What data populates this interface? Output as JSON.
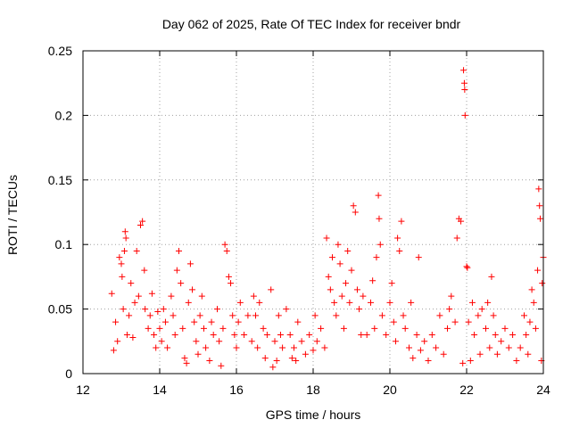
{
  "chart_data": {
    "type": "scatter",
    "title": "Day 062 of 2025, Rate Of TEC Index for receiver bndr",
    "xlabel": "GPS time / hours",
    "ylabel": "ROTI / TECUs",
    "xlim": [
      12,
      24
    ],
    "ylim": [
      0,
      0.25
    ],
    "xticks": [
      12,
      14,
      16,
      18,
      20,
      22,
      24
    ],
    "xtick_labels": [
      "12",
      "14",
      "16",
      "18",
      "20",
      "22",
      "24"
    ],
    "yticks": [
      0,
      0.05,
      0.1,
      0.15,
      0.2,
      0.25
    ],
    "ytick_labels": [
      "0",
      "0.05",
      "0.1",
      "0.15",
      "0.2",
      "0.25"
    ],
    "grid": true,
    "marker": "plus",
    "color": "#ff0000",
    "series": [
      {
        "name": "ROTI",
        "points": [
          [
            12.75,
            0.062
          ],
          [
            12.8,
            0.018
          ],
          [
            12.85,
            0.04
          ],
          [
            12.9,
            0.025
          ],
          [
            12.95,
            0.09
          ],
          [
            13.0,
            0.085
          ],
          [
            13.02,
            0.075
          ],
          [
            13.05,
            0.05
          ],
          [
            13.08,
            0.095
          ],
          [
            13.1,
            0.11
          ],
          [
            13.12,
            0.105
          ],
          [
            13.15,
            0.03
          ],
          [
            13.2,
            0.045
          ],
          [
            13.25,
            0.07
          ],
          [
            13.3,
            0.028
          ],
          [
            13.35,
            0.055
          ],
          [
            13.4,
            0.095
          ],
          [
            13.45,
            0.06
          ],
          [
            13.5,
            0.115
          ],
          [
            13.55,
            0.118
          ],
          [
            13.6,
            0.08
          ],
          [
            13.62,
            0.05
          ],
          [
            13.7,
            0.035
          ],
          [
            13.75,
            0.045
          ],
          [
            13.8,
            0.062
          ],
          [
            13.85,
            0.03
          ],
          [
            13.9,
            0.02
          ],
          [
            13.95,
            0.048
          ],
          [
            14.0,
            0.035
          ],
          [
            14.05,
            0.025
          ],
          [
            14.1,
            0.05
          ],
          [
            14.15,
            0.04
          ],
          [
            14.2,
            0.02
          ],
          [
            14.3,
            0.06
          ],
          [
            14.35,
            0.045
          ],
          [
            14.4,
            0.03
          ],
          [
            14.45,
            0.08
          ],
          [
            14.5,
            0.095
          ],
          [
            14.55,
            0.07
          ],
          [
            14.6,
            0.035
          ],
          [
            14.65,
            0.012
          ],
          [
            14.7,
            0.008
          ],
          [
            14.75,
            0.055
          ],
          [
            14.8,
            0.085
          ],
          [
            14.85,
            0.065
          ],
          [
            14.9,
            0.04
          ],
          [
            14.95,
            0.025
          ],
          [
            15.0,
            0.015
          ],
          [
            15.05,
            0.045
          ],
          [
            15.1,
            0.06
          ],
          [
            15.15,
            0.035
          ],
          [
            15.2,
            0.02
          ],
          [
            15.3,
            0.01
          ],
          [
            15.35,
            0.04
          ],
          [
            15.4,
            0.03
          ],
          [
            15.5,
            0.05
          ],
          [
            15.55,
            0.025
          ],
          [
            15.6,
            0.006
          ],
          [
            15.65,
            0.035
          ],
          [
            15.7,
            0.1
          ],
          [
            15.75,
            0.095
          ],
          [
            15.8,
            0.075
          ],
          [
            15.85,
            0.07
          ],
          [
            15.9,
            0.045
          ],
          [
            15.95,
            0.03
          ],
          [
            16.0,
            0.02
          ],
          [
            16.05,
            0.04
          ],
          [
            16.1,
            0.055
          ],
          [
            16.2,
            0.03
          ],
          [
            16.3,
            0.045
          ],
          [
            16.4,
            0.025
          ],
          [
            16.45,
            0.06
          ],
          [
            16.5,
            0.045
          ],
          [
            16.55,
            0.02
          ],
          [
            16.6,
            0.055
          ],
          [
            16.7,
            0.035
          ],
          [
            16.75,
            0.012
          ],
          [
            16.8,
            0.03
          ],
          [
            16.9,
            0.065
          ],
          [
            16.95,
            0.005
          ],
          [
            17.0,
            0.025
          ],
          [
            17.05,
            0.01
          ],
          [
            17.1,
            0.045
          ],
          [
            17.15,
            0.03
          ],
          [
            17.2,
            0.02
          ],
          [
            17.3,
            0.05
          ],
          [
            17.4,
            0.03
          ],
          [
            17.45,
            0.012
          ],
          [
            17.5,
            0.02
          ],
          [
            17.55,
            0.01
          ],
          [
            17.6,
            0.04
          ],
          [
            17.7,
            0.025
          ],
          [
            17.8,
            0.015
          ],
          [
            17.9,
            0.03
          ],
          [
            18.0,
            0.018
          ],
          [
            18.05,
            0.045
          ],
          [
            18.1,
            0.025
          ],
          [
            18.2,
            0.035
          ],
          [
            18.3,
            0.02
          ],
          [
            18.35,
            0.105
          ],
          [
            18.4,
            0.075
          ],
          [
            18.45,
            0.065
          ],
          [
            18.5,
            0.09
          ],
          [
            18.55,
            0.055
          ],
          [
            18.6,
            0.045
          ],
          [
            18.65,
            0.1
          ],
          [
            18.7,
            0.085
          ],
          [
            18.75,
            0.06
          ],
          [
            18.8,
            0.035
          ],
          [
            18.85,
            0.07
          ],
          [
            18.9,
            0.095
          ],
          [
            18.95,
            0.055
          ],
          [
            19.0,
            0.08
          ],
          [
            19.05,
            0.13
          ],
          [
            19.1,
            0.125
          ],
          [
            19.15,
            0.065
          ],
          [
            19.2,
            0.05
          ],
          [
            19.25,
            0.03
          ],
          [
            19.3,
            0.06
          ],
          [
            19.4,
            0.03
          ],
          [
            19.5,
            0.055
          ],
          [
            19.55,
            0.072
          ],
          [
            19.6,
            0.035
          ],
          [
            19.65,
            0.09
          ],
          [
            19.7,
            0.138
          ],
          [
            19.72,
            0.12
          ],
          [
            19.75,
            0.1
          ],
          [
            19.8,
            0.045
          ],
          [
            19.9,
            0.03
          ],
          [
            20.0,
            0.055
          ],
          [
            20.05,
            0.07
          ],
          [
            20.1,
            0.04
          ],
          [
            20.15,
            0.025
          ],
          [
            20.2,
            0.105
          ],
          [
            20.25,
            0.095
          ],
          [
            20.3,
            0.118
          ],
          [
            20.35,
            0.045
          ],
          [
            20.4,
            0.035
          ],
          [
            20.5,
            0.02
          ],
          [
            20.55,
            0.055
          ],
          [
            20.6,
            0.012
          ],
          [
            20.7,
            0.03
          ],
          [
            20.75,
            0.09
          ],
          [
            20.8,
            0.018
          ],
          [
            20.9,
            0.025
          ],
          [
            21.0,
            0.01
          ],
          [
            21.1,
            0.03
          ],
          [
            21.2,
            0.02
          ],
          [
            21.3,
            0.045
          ],
          [
            21.4,
            0.015
          ],
          [
            21.5,
            0.035
          ],
          [
            21.55,
            0.05
          ],
          [
            21.6,
            0.06
          ],
          [
            21.7,
            0.04
          ],
          [
            21.75,
            0.105
          ],
          [
            21.8,
            0.12
          ],
          [
            21.85,
            0.118
          ],
          [
            21.9,
            0.008
          ],
          [
            21.92,
            0.235
          ],
          [
            21.94,
            0.225
          ],
          [
            21.95,
            0.22
          ],
          [
            21.96,
            0.2
          ],
          [
            22.0,
            0.083
          ],
          [
            22.02,
            0.082
          ],
          [
            22.05,
            0.04
          ],
          [
            22.1,
            0.01
          ],
          [
            22.15,
            0.055
          ],
          [
            22.2,
            0.03
          ],
          [
            22.3,
            0.045
          ],
          [
            22.35,
            0.015
          ],
          [
            22.4,
            0.05
          ],
          [
            22.5,
            0.035
          ],
          [
            22.55,
            0.055
          ],
          [
            22.6,
            0.02
          ],
          [
            22.65,
            0.075
          ],
          [
            22.7,
            0.045
          ],
          [
            22.75,
            0.03
          ],
          [
            22.8,
            0.015
          ],
          [
            22.9,
            0.025
          ],
          [
            23.0,
            0.035
          ],
          [
            23.1,
            0.02
          ],
          [
            23.2,
            0.03
          ],
          [
            23.3,
            0.01
          ],
          [
            23.4,
            0.02
          ],
          [
            23.5,
            0.045
          ],
          [
            23.55,
            0.03
          ],
          [
            23.6,
            0.015
          ],
          [
            23.65,
            0.04
          ],
          [
            23.7,
            0.065
          ],
          [
            23.75,
            0.055
          ],
          [
            23.8,
            0.035
          ],
          [
            23.85,
            0.08
          ],
          [
            23.88,
            0.143
          ],
          [
            23.9,
            0.13
          ],
          [
            23.92,
            0.12
          ],
          [
            23.95,
            0.01
          ],
          [
            23.97,
            0.07
          ],
          [
            24.0,
            0.09
          ]
        ]
      }
    ]
  }
}
